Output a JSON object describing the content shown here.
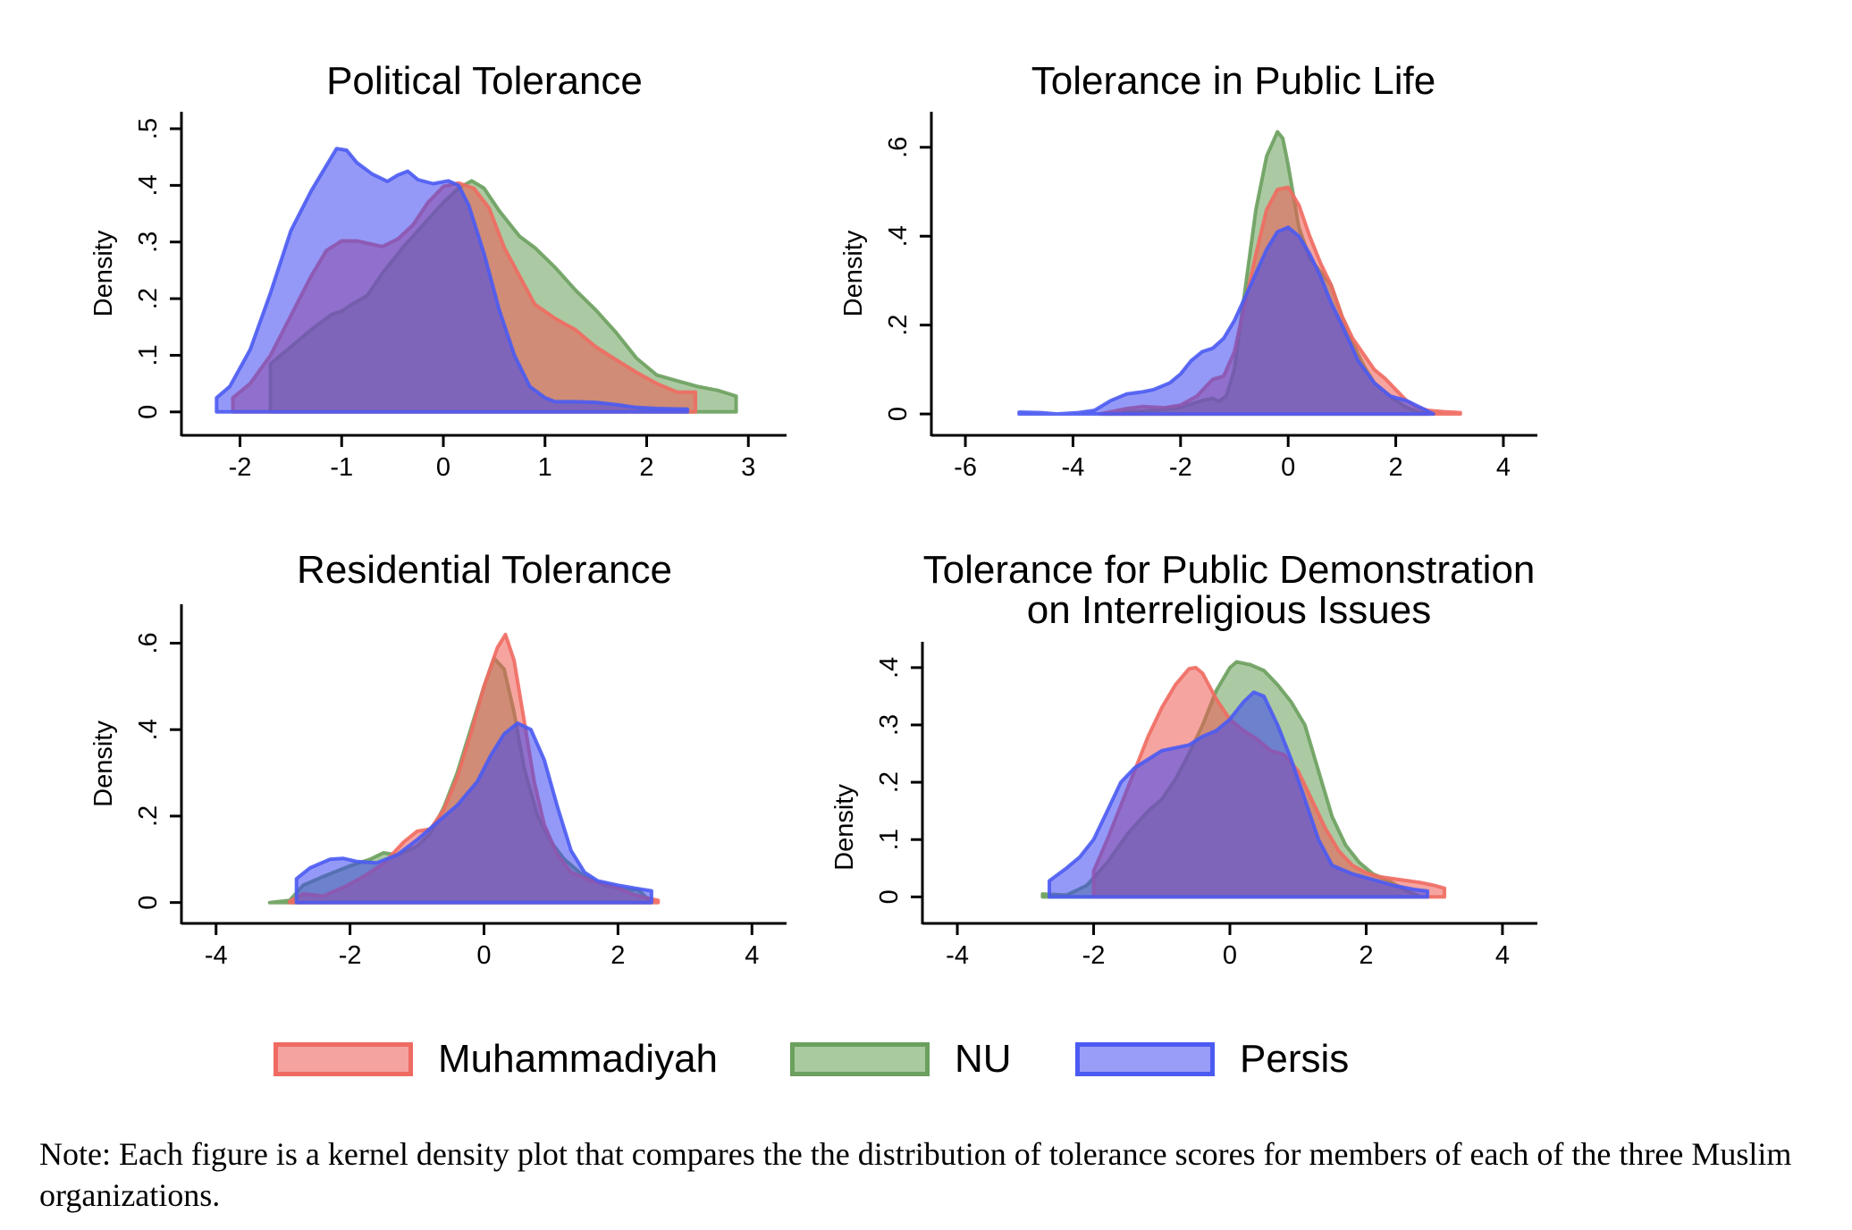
{
  "colors": {
    "Muhammadiyah": {
      "stroke": "#EF6B62",
      "fill": "#EE5A52"
    },
    "NU": {
      "stroke": "#6BA05E",
      "fill": "#5E9A4E"
    },
    "Persis": {
      "stroke": "#4B5BF2",
      "fill": "#3C45F0"
    }
  },
  "legend": [
    {
      "name": "Muhammadiyah"
    },
    {
      "name": "NU"
    },
    {
      "name": "Persis"
    }
  ],
  "note": "Note: Each figure is a kernel density plot that compares the the distribution of tolerance scores for members of each of the three Muslim organizations.",
  "chart_data": [
    {
      "type": "area",
      "title": "Political Tolerance",
      "title_lines": [
        "Political Tolerance"
      ],
      "xlabel": "",
      "ylabel": "Density",
      "xlim": [
        -2.4,
        3.2
      ],
      "ylim": [
        -0.035,
        0.53
      ],
      "xticks": [
        -2,
        -1,
        0,
        1,
        2,
        3
      ],
      "xtick_labels": [
        "-2",
        "-1",
        "0",
        "1",
        "2",
        "3"
      ],
      "yticks": [
        0,
        0.1,
        0.2,
        0.3,
        0.4,
        0.5
      ],
      "ytick_labels": [
        "0",
        ".1",
        ".2",
        ".3",
        ".4",
        ".5"
      ],
      "series": [
        {
          "name": "NU",
          "x": [
            -1.7,
            -1.7,
            -1.5,
            -1.3,
            -1.1,
            -1.0,
            -0.9,
            -0.75,
            -0.6,
            -0.4,
            -0.2,
            0.0,
            0.15,
            0.28,
            0.4,
            0.55,
            0.75,
            0.9,
            1.1,
            1.3,
            1.5,
            1.7,
            1.9,
            2.1,
            2.3,
            2.5,
            2.7,
            2.88,
            2.88
          ],
          "y": [
            0,
            0.085,
            0.115,
            0.145,
            0.172,
            0.178,
            0.19,
            0.205,
            0.245,
            0.29,
            0.33,
            0.37,
            0.395,
            0.408,
            0.395,
            0.355,
            0.31,
            0.29,
            0.255,
            0.215,
            0.18,
            0.14,
            0.095,
            0.065,
            0.055,
            0.045,
            0.038,
            0.028,
            0
          ]
        },
        {
          "name": "Muhammadiyah",
          "x": [
            -2.07,
            -2.07,
            -1.9,
            -1.7,
            -1.5,
            -1.3,
            -1.15,
            -1.0,
            -0.85,
            -0.6,
            -0.45,
            -0.3,
            -0.15,
            0.0,
            0.15,
            0.3,
            0.45,
            0.6,
            0.75,
            0.9,
            1.1,
            1.3,
            1.5,
            1.7,
            1.9,
            2.1,
            2.3,
            2.48,
            2.48
          ],
          "y": [
            0,
            0.025,
            0.05,
            0.1,
            0.17,
            0.24,
            0.285,
            0.302,
            0.302,
            0.292,
            0.305,
            0.33,
            0.37,
            0.398,
            0.404,
            0.395,
            0.36,
            0.29,
            0.24,
            0.19,
            0.165,
            0.145,
            0.115,
            0.092,
            0.07,
            0.05,
            0.035,
            0.035,
            0
          ]
        },
        {
          "name": "Persis",
          "x": [
            -2.23,
            -2.23,
            -2.1,
            -1.9,
            -1.7,
            -1.5,
            -1.3,
            -1.15,
            -1.05,
            -0.95,
            -0.85,
            -0.7,
            -0.55,
            -0.45,
            -0.35,
            -0.25,
            -0.1,
            0.05,
            0.15,
            0.25,
            0.4,
            0.55,
            0.7,
            0.85,
            1.0,
            1.1,
            1.3,
            1.5,
            1.7,
            1.9,
            2.1,
            2.4,
            2.4
          ],
          "y": [
            0,
            0.025,
            0.045,
            0.11,
            0.21,
            0.32,
            0.39,
            0.435,
            0.465,
            0.462,
            0.44,
            0.42,
            0.407,
            0.418,
            0.425,
            0.41,
            0.403,
            0.408,
            0.4,
            0.365,
            0.28,
            0.18,
            0.1,
            0.045,
            0.025,
            0.018,
            0.018,
            0.017,
            0.013,
            0.008,
            0.006,
            0.005,
            0
          ]
        }
      ]
    },
    {
      "type": "area",
      "title": "Tolerance in Public Life",
      "title_lines": [
        "Tolerance in Public Life"
      ],
      "xlabel": "",
      "ylabel": "Density",
      "xlim": [
        -6.3,
        4.3
      ],
      "ylim": [
        -0.04,
        0.68
      ],
      "xticks": [
        -6,
        -4,
        -2,
        0,
        2,
        4
      ],
      "xtick_labels": [
        "-6",
        "-4",
        "-2",
        "0",
        "2",
        "4"
      ],
      "yticks": [
        0,
        0.2,
        0.4,
        0.6
      ],
      "ytick_labels": [
        "0",
        ".2",
        ".4",
        ".6"
      ],
      "series": [
        {
          "name": "NU",
          "x": [
            -3.4,
            -3.0,
            -2.5,
            -2.0,
            -1.6,
            -1.4,
            -1.3,
            -1.15,
            -1.0,
            -0.8,
            -0.6,
            -0.4,
            -0.2,
            -0.1,
            0.0,
            0.2,
            0.4,
            0.6,
            0.8,
            1.0,
            1.2,
            1.4,
            1.6,
            1.8,
            2.0,
            2.2,
            2.4,
            2.6
          ],
          "y": [
            0,
            0.004,
            0.008,
            0.015,
            0.03,
            0.035,
            0.028,
            0.04,
            0.1,
            0.28,
            0.46,
            0.58,
            0.635,
            0.62,
            0.56,
            0.42,
            0.35,
            0.32,
            0.29,
            0.22,
            0.16,
            0.11,
            0.07,
            0.05,
            0.03,
            0.015,
            0.005,
            0
          ]
        },
        {
          "name": "Muhammadiyah",
          "x": [
            -3.5,
            -3.0,
            -2.7,
            -2.3,
            -2.0,
            -1.7,
            -1.4,
            -1.2,
            -1.0,
            -0.8,
            -0.6,
            -0.4,
            -0.2,
            0.0,
            0.2,
            0.4,
            0.6,
            0.8,
            1.0,
            1.2,
            1.4,
            1.6,
            1.8,
            2.0,
            2.2,
            2.4,
            2.6,
            2.9,
            3.2,
            3.2
          ],
          "y": [
            0,
            0.012,
            0.017,
            0.014,
            0.02,
            0.04,
            0.078,
            0.085,
            0.14,
            0.25,
            0.36,
            0.46,
            0.505,
            0.51,
            0.47,
            0.4,
            0.34,
            0.29,
            0.22,
            0.17,
            0.135,
            0.1,
            0.08,
            0.055,
            0.03,
            0.015,
            0.008,
            0.005,
            0.003,
            0
          ]
        },
        {
          "name": "Persis",
          "x": [
            -5.0,
            -4.6,
            -4.3,
            -3.9,
            -3.6,
            -3.3,
            -3.0,
            -2.7,
            -2.5,
            -2.2,
            -2.0,
            -1.8,
            -1.6,
            -1.4,
            -1.2,
            -1.0,
            -0.7,
            -0.4,
            -0.2,
            0.0,
            0.2,
            0.4,
            0.6,
            0.8,
            1.0,
            1.3,
            1.6,
            1.9,
            2.2,
            2.5,
            2.7
          ],
          "y": [
            0.004,
            0.003,
            0.0,
            0.003,
            0.008,
            0.03,
            0.045,
            0.05,
            0.055,
            0.07,
            0.09,
            0.12,
            0.14,
            0.148,
            0.17,
            0.21,
            0.29,
            0.37,
            0.41,
            0.42,
            0.4,
            0.36,
            0.31,
            0.25,
            0.2,
            0.12,
            0.07,
            0.04,
            0.03,
            0.012,
            0
          ]
        }
      ]
    },
    {
      "type": "area",
      "title": "Residential Tolerance",
      "title_lines": [
        "Residential Tolerance"
      ],
      "xlabel": "",
      "ylabel": "Density",
      "xlim": [
        -4.25,
        4.25
      ],
      "ylim": [
        -0.04,
        0.69
      ],
      "xticks": [
        -4,
        -2,
        0,
        2,
        4
      ],
      "xtick_labels": [
        "-4",
        "-2",
        "0",
        "2",
        "4"
      ],
      "yticks": [
        0,
        0.2,
        0.4,
        0.6
      ],
      "ytick_labels": [
        "0",
        ".2",
        ".4",
        ".6"
      ],
      "series": [
        {
          "name": "NU",
          "x": [
            -3.2,
            -2.9,
            -2.7,
            -2.4,
            -2.0,
            -1.7,
            -1.5,
            -1.3,
            -1.0,
            -0.8,
            -0.6,
            -0.4,
            -0.2,
            0.0,
            0.15,
            0.3,
            0.45,
            0.6,
            0.8,
            1.0,
            1.2,
            1.5,
            1.8,
            2.1,
            2.3,
            2.5
          ],
          "y": [
            0,
            0.005,
            0.04,
            0.06,
            0.085,
            0.1,
            0.115,
            0.11,
            0.13,
            0.16,
            0.22,
            0.3,
            0.4,
            0.5,
            0.565,
            0.54,
            0.44,
            0.31,
            0.2,
            0.14,
            0.1,
            0.06,
            0.04,
            0.03,
            0.03,
            0
          ]
        },
        {
          "name": "Muhammadiyah",
          "x": [
            -2.9,
            -2.7,
            -2.4,
            -2.1,
            -1.8,
            -1.5,
            -1.2,
            -1.0,
            -0.8,
            -0.6,
            -0.4,
            -0.2,
            0.0,
            0.2,
            0.32,
            0.45,
            0.6,
            0.75,
            0.9,
            1.1,
            1.3,
            1.6,
            1.9,
            2.2,
            2.4,
            2.6,
            2.6
          ],
          "y": [
            0.003,
            0.02,
            0.015,
            0.035,
            0.06,
            0.09,
            0.14,
            0.165,
            0.17,
            0.215,
            0.29,
            0.39,
            0.5,
            0.59,
            0.62,
            0.56,
            0.42,
            0.28,
            0.18,
            0.11,
            0.07,
            0.05,
            0.04,
            0.02,
            0.012,
            0.005,
            0
          ]
        },
        {
          "name": "Persis",
          "x": [
            -2.8,
            -2.8,
            -2.6,
            -2.3,
            -2.1,
            -1.9,
            -1.6,
            -1.3,
            -1.0,
            -0.7,
            -0.4,
            -0.1,
            0.1,
            0.3,
            0.5,
            0.7,
            0.9,
            1.1,
            1.3,
            1.5,
            1.7,
            2.0,
            2.3,
            2.5,
            2.5
          ],
          "y": [
            0,
            0.055,
            0.08,
            0.1,
            0.102,
            0.095,
            0.092,
            0.11,
            0.145,
            0.185,
            0.225,
            0.28,
            0.34,
            0.39,
            0.415,
            0.4,
            0.33,
            0.22,
            0.12,
            0.07,
            0.05,
            0.04,
            0.032,
            0.027,
            0
          ]
        }
      ]
    },
    {
      "type": "area",
      "title": "Tolerance for Public Demonstration on Interreligious Issues",
      "title_lines": [
        "Tolerance for Public Demonstration",
        "on Interreligious Issues"
      ],
      "xlabel": "",
      "ylabel": "Density",
      "xlim": [
        -4.25,
        4.25
      ],
      "ylim": [
        -0.04,
        0.445
      ],
      "xticks": [
        -4,
        -2,
        0,
        2,
        4
      ],
      "xtick_labels": [
        "-4",
        "-2",
        "0",
        "2",
        "4"
      ],
      "yticks": [
        0,
        0.1,
        0.2,
        0.3,
        0.4
      ],
      "ytick_labels": [
        "0",
        ".1",
        ".2",
        ".3",
        ".4"
      ],
      "series": [
        {
          "name": "NU",
          "x": [
            -2.75,
            -2.75,
            -2.4,
            -2.1,
            -1.8,
            -1.5,
            -1.2,
            -1.0,
            -0.8,
            -0.6,
            -0.4,
            -0.2,
            0.0,
            0.1,
            0.3,
            0.5,
            0.7,
            0.9,
            1.1,
            1.3,
            1.5,
            1.7,
            1.9,
            2.1,
            2.3,
            2.6,
            2.8
          ],
          "y": [
            0,
            0.005,
            0.003,
            0.02,
            0.06,
            0.11,
            0.15,
            0.17,
            0.205,
            0.25,
            0.3,
            0.36,
            0.4,
            0.41,
            0.405,
            0.395,
            0.37,
            0.34,
            0.3,
            0.22,
            0.14,
            0.09,
            0.06,
            0.04,
            0.03,
            0.01,
            0
          ]
        },
        {
          "name": "Muhammadiyah",
          "x": [
            -2.0,
            -2.0,
            -1.8,
            -1.6,
            -1.4,
            -1.2,
            -1.0,
            -0.8,
            -0.6,
            -0.5,
            -0.4,
            -0.2,
            0.0,
            0.2,
            0.4,
            0.6,
            0.8,
            1.0,
            1.2,
            1.4,
            1.6,
            1.8,
            2.0,
            2.2,
            2.5,
            2.8,
            3.0,
            3.15,
            3.15
          ],
          "y": [
            0,
            0.045,
            0.1,
            0.16,
            0.22,
            0.28,
            0.33,
            0.37,
            0.398,
            0.4,
            0.39,
            0.345,
            0.31,
            0.29,
            0.275,
            0.255,
            0.248,
            0.22,
            0.17,
            0.12,
            0.08,
            0.055,
            0.042,
            0.035,
            0.03,
            0.025,
            0.02,
            0.015,
            0
          ]
        },
        {
          "name": "Persis",
          "x": [
            -2.65,
            -2.65,
            -2.4,
            -2.2,
            -2.0,
            -1.8,
            -1.6,
            -1.4,
            -1.2,
            -1.0,
            -0.8,
            -0.6,
            -0.4,
            -0.2,
            0.0,
            0.2,
            0.35,
            0.5,
            0.7,
            0.9,
            1.1,
            1.3,
            1.5,
            1.8,
            2.1,
            2.4,
            2.7,
            2.9,
            2.9
          ],
          "y": [
            0,
            0.028,
            0.05,
            0.07,
            0.1,
            0.15,
            0.2,
            0.225,
            0.24,
            0.255,
            0.26,
            0.265,
            0.28,
            0.29,
            0.31,
            0.34,
            0.357,
            0.35,
            0.3,
            0.24,
            0.17,
            0.1,
            0.055,
            0.04,
            0.03,
            0.02,
            0.013,
            0.01,
            0
          ]
        }
      ]
    }
  ]
}
